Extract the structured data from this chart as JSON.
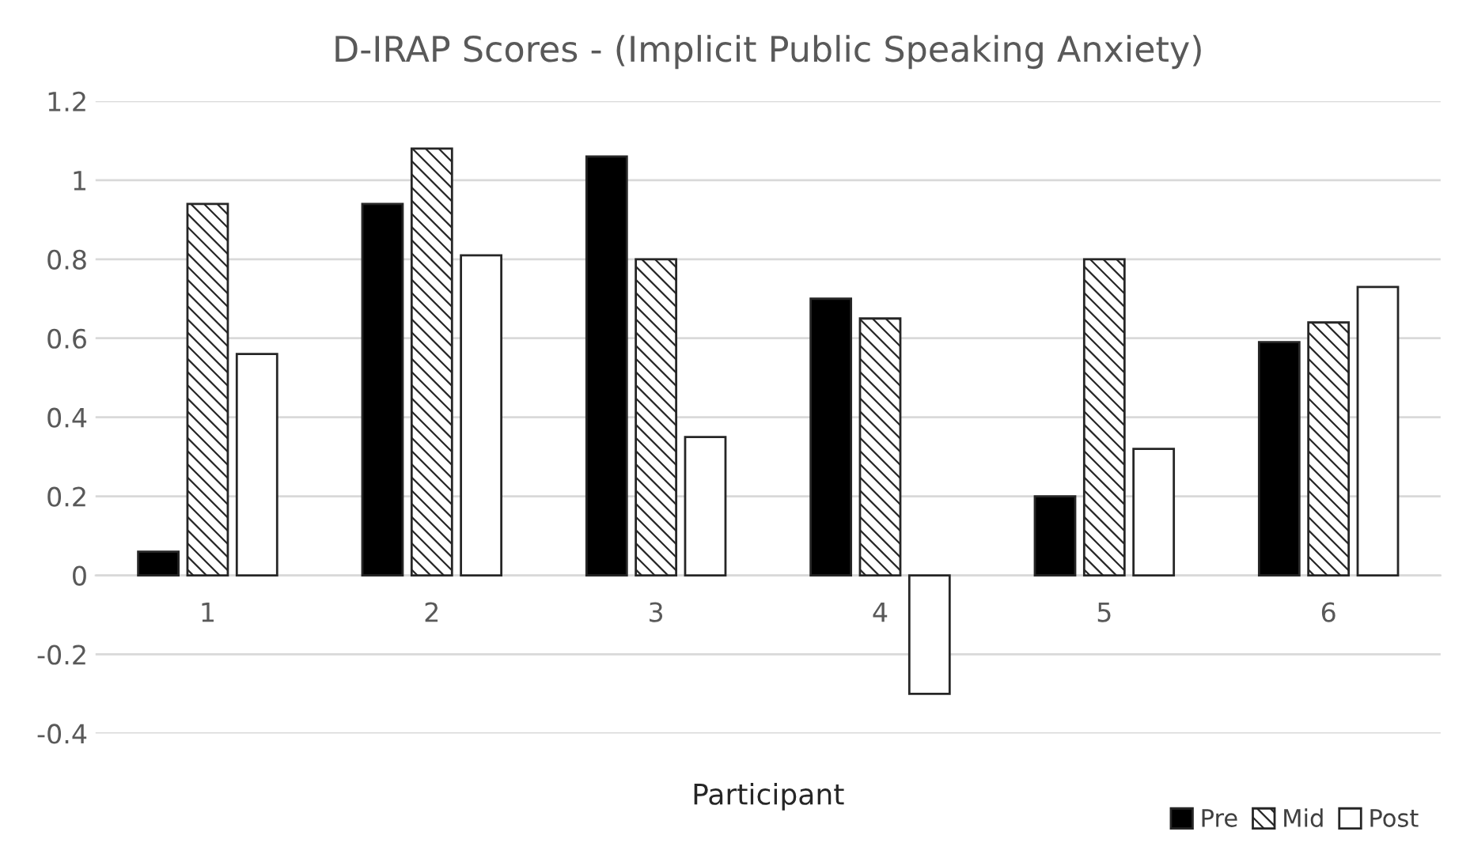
{
  "chart_data": {
    "type": "bar",
    "title": "D-IRAP Scores - (Implicit Public Speaking Anxiety)",
    "xlabel": "Participant",
    "categories": [
      "1",
      "2",
      "3",
      "4",
      "5",
      "6"
    ],
    "series": [
      {
        "name": "Pre",
        "color": "#000000",
        "values": [
          0.06,
          0.94,
          1.06,
          0.7,
          0.2,
          0.59
        ]
      },
      {
        "name": "Mid",
        "color": "#262626",
        "values": [
          0.94,
          1.08,
          0.8,
          0.65,
          0.8,
          0.64
        ]
      },
      {
        "name": "Post",
        "color": "#ffffff",
        "values": [
          0.56,
          0.81,
          0.35,
          -0.3,
          0.32,
          0.73
        ]
      }
    ],
    "ylim": [
      -0.4,
      1.2
    ],
    "yticks": [
      {
        "value": -0.4,
        "label": "-0.4"
      },
      {
        "value": -0.2,
        "label": "-0.2"
      },
      0,
      0.2,
      0.4,
      0.6,
      0.8,
      1,
      1.2
    ],
    "grid": "y",
    "legend": "bottom right"
  }
}
